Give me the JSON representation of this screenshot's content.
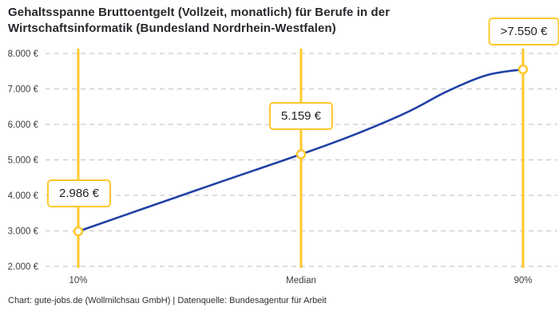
{
  "title": {
    "line1": "Gehaltsspanne Bruttoentgelt (Vollzeit, monatlich) für Berufe in der",
    "line2": "Wirtschaftsinformatik (Bundesland Nordrhein-Westfalen)"
  },
  "footer": "Chart: gute-jobs.de (Wollmilchsau GmbH) | Datenquelle: Bundesagentur für Arbeit",
  "chart_data": {
    "type": "line",
    "title": "Gehaltsspanne Bruttoentgelt (Vollzeit, monatlich) für Berufe in der Wirtschaftsinformatik (Bundesland Nordrhein-Westfalen)",
    "categories": [
      "10%",
      "Median",
      "90%"
    ],
    "values": [
      2986,
      5159,
      7550
    ],
    "point_labels": [
      "2.986 €",
      "5.159 €",
      ">7.550 €"
    ],
    "y_tick_labels": [
      "2.000 €",
      "3.000 €",
      "4.000 €",
      "5.000 €",
      "6.000 €",
      "7.000 €",
      "8.000 €"
    ],
    "y_tick_values": [
      2000,
      3000,
      4000,
      5000,
      6000,
      7000,
      8000
    ],
    "ylim": [
      2000,
      8000
    ],
    "xlabel": "",
    "ylabel": "",
    "grid": "horizontal-dashed",
    "legend": "none",
    "curve_samples": [
      [
        0.0,
        2986
      ],
      [
        0.147,
        3630
      ],
      [
        0.327,
        4411
      ],
      [
        0.501,
        5159
      ],
      [
        0.621,
        5712
      ],
      [
        0.74,
        6346
      ],
      [
        0.829,
        6930
      ],
      [
        0.919,
        7390
      ],
      [
        1.0,
        7550
      ]
    ],
    "colors": {
      "accent_yellow": "#ffc72c",
      "line_blue": "#2041a5",
      "grid_gray": "#c9c9c9",
      "axis_text": "#3d3d42",
      "title_text": "#28282d"
    }
  }
}
